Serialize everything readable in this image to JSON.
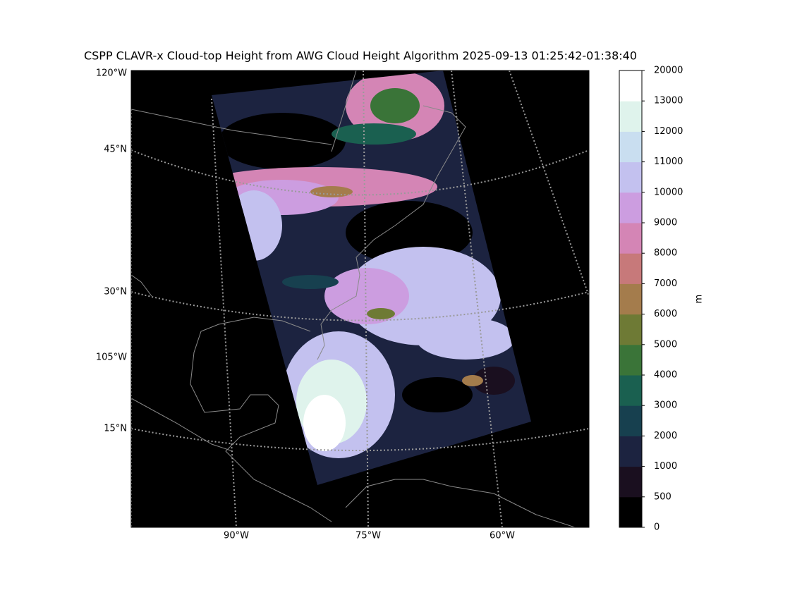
{
  "title": "CSPP CLAVR-x Cloud-top Height from AWG Cloud Height Algorithm 2025-09-13 01:25:42-01:38:40",
  "map": {
    "left_labels": [
      "120°W",
      "45°N",
      "30°N",
      "105°W",
      "15°N"
    ],
    "bottom_labels": [
      "90°W",
      "75°W",
      "60°W"
    ]
  },
  "colorbar": {
    "label": "m",
    "ticks": [
      0,
      500,
      1000,
      2000,
      3000,
      4000,
      5000,
      6000,
      7000,
      8000,
      9000,
      10000,
      11000,
      12000,
      13000,
      20000
    ],
    "colors": [
      "#000000",
      "#1a0f1f",
      "#1c2340",
      "#17404f",
      "#1a6050",
      "#3a7438",
      "#6e7a35",
      "#a47c4c",
      "#c7797a",
      "#d485b5",
      "#cc9de0",
      "#c3c1ef",
      "#c9def0",
      "#dff3ec",
      "#ffffff"
    ]
  }
}
